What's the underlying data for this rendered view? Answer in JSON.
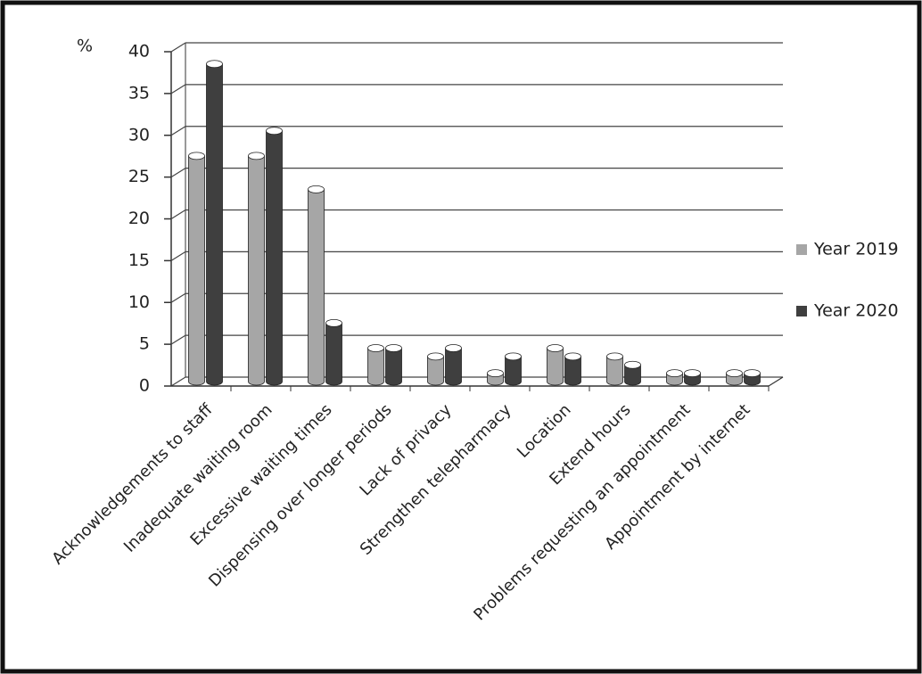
{
  "chart_data": {
    "type": "bar",
    "y_label": "%",
    "categories": [
      "Acknowledgements to staff",
      "Inadequate waiting room",
      "Excessive waiting times",
      "Dispensing over longer periods",
      "Lack of privacy",
      "Strengthen telepharmacy",
      "Location",
      "Extend hours",
      "Problems requesting an appointment",
      "Appointment by internet"
    ],
    "series": [
      {
        "name": "Year 2019",
        "color": "#a6a6a6",
        "values": [
          27,
          27,
          23,
          4,
          3,
          1,
          4,
          3,
          1,
          1
        ]
      },
      {
        "name": "Year 2020",
        "color": "#3f3f3f",
        "values": [
          38,
          30,
          7,
          4,
          4,
          3,
          3,
          2,
          1,
          1
        ]
      }
    ],
    "ylim": [
      0,
      40
    ],
    "yticks": [
      0,
      5,
      10,
      15,
      20,
      25,
      30,
      35,
      40
    ],
    "grid": true,
    "legend": "right"
  }
}
